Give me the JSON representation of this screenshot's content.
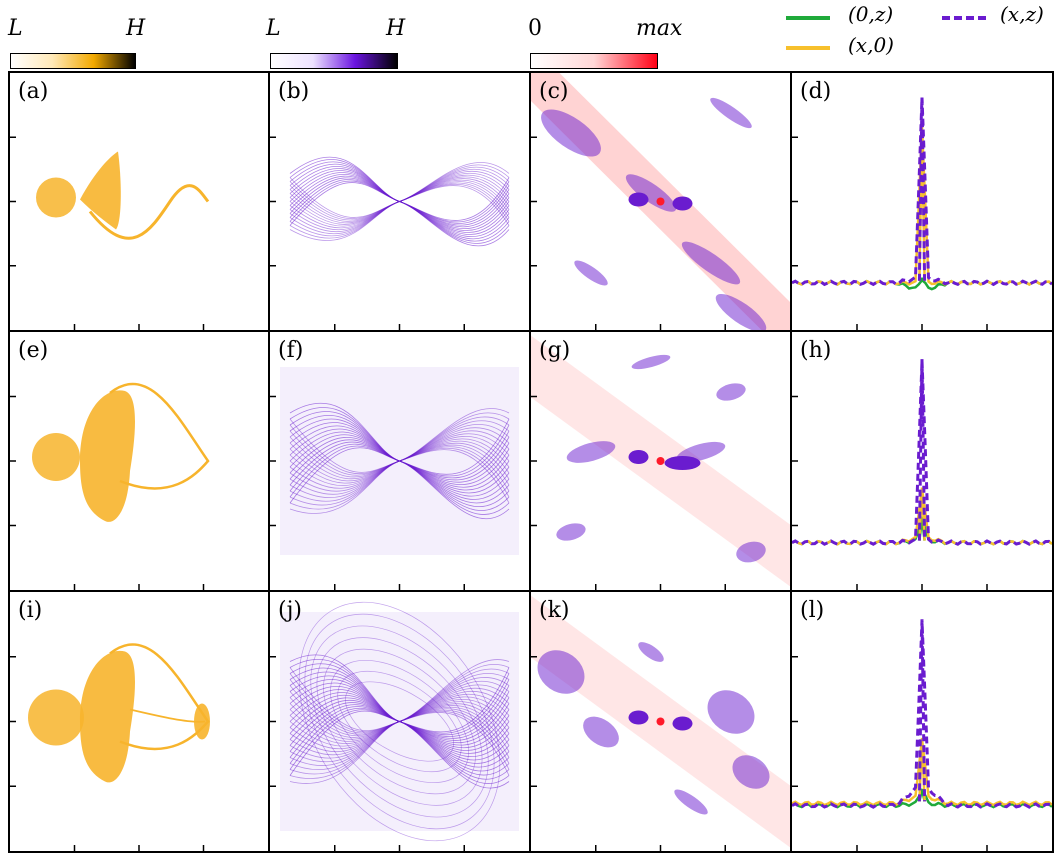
{
  "colorbars": [
    {
      "low": "L",
      "high": "H",
      "gradient": [
        "#ffffff",
        "#ffe9b8",
        "#f2a900",
        "#000000"
      ]
    },
    {
      "low": "L",
      "high": "H",
      "gradient": [
        "#ffffff",
        "#ede2ff",
        "#6a14e0",
        "#000000"
      ]
    },
    {
      "low": "0",
      "high": "max",
      "gradient": [
        "#ffffff",
        "#ffd7d7",
        "#ff0015"
      ]
    }
  ],
  "legend": [
    {
      "label": "(0,z)",
      "color": "#1faa3a",
      "dash": false
    },
    {
      "label": "(x,0)",
      "color": "#f7c02c",
      "dash": false
    },
    {
      "label": "(x,z)",
      "color": "#6a1ccf",
      "dash": true
    }
  ],
  "colors": {
    "orange": "#f7b42c",
    "purple": "#6a1ccf",
    "red": "#ff1a2a",
    "green": "#1faa3a",
    "yellow": "#f7c02c"
  },
  "panels": [
    {
      "label": "(a)",
      "type": "attractor"
    },
    {
      "label": "(b)",
      "type": "density"
    },
    {
      "label": "(c)",
      "type": "correlation"
    },
    {
      "label": "(d)",
      "type": "profile"
    },
    {
      "label": "(e)",
      "type": "attractor"
    },
    {
      "label": "(f)",
      "type": "density"
    },
    {
      "label": "(g)",
      "type": "correlation"
    },
    {
      "label": "(h)",
      "type": "profile"
    },
    {
      "label": "(i)",
      "type": "attractor"
    },
    {
      "label": "(j)",
      "type": "density"
    },
    {
      "label": "(k)",
      "type": "correlation"
    },
    {
      "label": "(l)",
      "type": "profile"
    }
  ],
  "chart_data": [
    {
      "type": "line",
      "panel": "(d)",
      "series": [
        {
          "name": "(0,z)",
          "x": [
            -1,
            -0.2,
            -0.05,
            0,
            0.05,
            0.2,
            1
          ],
          "y": [
            0.03,
            0.03,
            0.0,
            0.05,
            0.0,
            0.03,
            0.03
          ]
        },
        {
          "name": "(x,0)",
          "x": [
            -1,
            -0.2,
            -0.05,
            0,
            0.05,
            0.2,
            1
          ],
          "y": [
            0.03,
            0.03,
            0.03,
            0.8,
            0.03,
            0.03,
            0.03
          ]
        },
        {
          "name": "(x,z)",
          "x": [
            -1,
            -0.2,
            -0.05,
            0,
            0.05,
            0.2,
            1
          ],
          "y": [
            0.03,
            0.03,
            0.05,
            0.95,
            0.05,
            0.03,
            0.03
          ]
        }
      ]
    },
    {
      "type": "line",
      "panel": "(h)",
      "series": [
        {
          "name": "(0,z)",
          "x": [
            -1,
            -0.2,
            -0.05,
            0,
            0.05,
            0.2,
            1
          ],
          "y": [
            0.03,
            0.03,
            0.04,
            0.15,
            0.04,
            0.03,
            0.03
          ]
        },
        {
          "name": "(x,0)",
          "x": [
            -1,
            -0.2,
            -0.05,
            0,
            0.05,
            0.2,
            1
          ],
          "y": [
            0.03,
            0.03,
            0.05,
            0.3,
            0.05,
            0.03,
            0.03
          ]
        },
        {
          "name": "(x,z)",
          "x": [
            -1,
            -0.2,
            -0.05,
            0,
            0.05,
            0.2,
            1
          ],
          "y": [
            0.03,
            0.03,
            0.04,
            0.93,
            0.04,
            0.03,
            0.03
          ]
        }
      ]
    },
    {
      "type": "line",
      "panel": "(l)",
      "series": [
        {
          "name": "(0,z)",
          "x": [
            -1,
            -0.2,
            -0.05,
            0,
            0.05,
            0.2,
            1
          ],
          "y": [
            0.02,
            0.02,
            0.03,
            0.1,
            0.03,
            0.02,
            0.02
          ]
        },
        {
          "name": "(x,0)",
          "x": [
            -1,
            -0.2,
            -0.05,
            0,
            0.05,
            0.2,
            1
          ],
          "y": [
            0.03,
            0.03,
            0.06,
            0.35,
            0.06,
            0.03,
            0.03
          ]
        },
        {
          "name": "(x,z)",
          "x": [
            -1,
            -0.2,
            -0.05,
            0,
            0.05,
            0.2,
            1
          ],
          "y": [
            0.02,
            0.02,
            0.1,
            0.93,
            0.1,
            0.02,
            0.02
          ]
        }
      ]
    }
  ]
}
